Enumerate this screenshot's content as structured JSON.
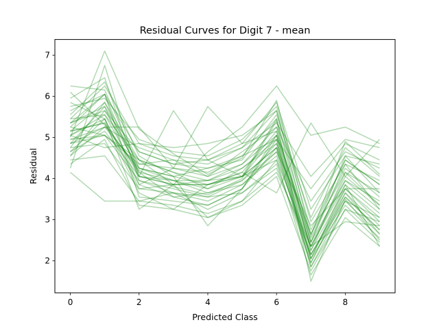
{
  "chart_data": {
    "type": "line",
    "title": "Residual Curves for Digit 7 - mean",
    "xlabel": "Predicted Class",
    "ylabel": "Residual",
    "x": [
      0,
      1,
      2,
      3,
      4,
      5,
      6,
      7,
      8,
      9
    ],
    "xlim": [
      -0.45,
      9.45
    ],
    "ylim": [
      1.22,
      7.38
    ],
    "xticks": [
      0,
      2,
      4,
      6,
      8
    ],
    "yticks": [
      2,
      3,
      4,
      5,
      6,
      7
    ],
    "grid": false,
    "line_color": "#008000",
    "line_alpha": 0.3,
    "series": [
      {
        "values": [
          5.05,
          5.55,
          4.05,
          3.95,
          3.75,
          4.05,
          5.05,
          2.05,
          3.85,
          3.15
        ]
      },
      {
        "values": [
          4.95,
          5.25,
          4.25,
          3.95,
          3.95,
          4.25,
          4.85,
          2.35,
          4.05,
          3.35
        ]
      },
      {
        "values": [
          5.15,
          5.85,
          4.45,
          4.15,
          3.95,
          4.35,
          5.25,
          2.25,
          3.75,
          3.05
        ]
      },
      {
        "values": [
          4.85,
          5.05,
          3.95,
          3.75,
          3.55,
          3.95,
          4.65,
          1.95,
          3.65,
          2.85
        ]
      },
      {
        "values": [
          5.25,
          6.05,
          4.65,
          4.35,
          4.25,
          4.55,
          5.45,
          2.55,
          4.25,
          3.55
        ]
      },
      {
        "values": [
          4.75,
          4.85,
          3.75,
          3.65,
          3.45,
          3.85,
          4.55,
          2.15,
          3.55,
          2.75
        ]
      },
      {
        "values": [
          5.35,
          5.65,
          4.25,
          4.05,
          3.85,
          4.15,
          5.15,
          2.45,
          3.95,
          3.25
        ]
      },
      {
        "values": [
          5.05,
          5.45,
          3.85,
          3.55,
          3.35,
          3.75,
          4.95,
          1.85,
          3.45,
          2.65
        ]
      },
      {
        "values": [
          4.65,
          5.15,
          4.05,
          3.85,
          3.85,
          4.05,
          4.75,
          2.65,
          4.15,
          3.65
        ]
      },
      {
        "values": [
          5.45,
          6.25,
          4.85,
          4.55,
          4.45,
          4.75,
          5.65,
          2.75,
          4.45,
          3.85
        ]
      },
      {
        "values": [
          5.15,
          5.35,
          4.15,
          3.95,
          3.65,
          3.95,
          4.85,
          2.05,
          3.75,
          2.95
        ]
      },
      {
        "values": [
          4.85,
          5.75,
          4.35,
          4.25,
          4.05,
          4.35,
          5.05,
          2.35,
          3.95,
          3.45
        ]
      },
      {
        "values": [
          6.1,
          5.3,
          4.2,
          3.8,
          3.6,
          4.0,
          5.4,
          1.5,
          3.5,
          2.5
        ]
      },
      {
        "values": [
          5.0,
          7.1,
          5.2,
          4.6,
          4.1,
          4.5,
          5.9,
          2.6,
          4.9,
          4.1
        ]
      },
      {
        "values": [
          4.15,
          3.45,
          3.45,
          3.65,
          3.25,
          3.65,
          4.25,
          2.15,
          3.65,
          2.65
        ]
      },
      {
        "values": [
          4.25,
          6.75,
          4.05,
          3.85,
          3.85,
          4.05,
          4.45,
          2.35,
          3.85,
          2.35
        ]
      },
      {
        "values": [
          5.65,
          6.05,
          4.05,
          5.65,
          4.45,
          4.05,
          4.75,
          1.85,
          3.25,
          2.95
        ]
      },
      {
        "values": [
          4.55,
          5.25,
          5.25,
          4.25,
          5.75,
          4.85,
          5.15,
          2.45,
          4.55,
          3.65
        ]
      },
      {
        "values": [
          5.85,
          5.45,
          3.25,
          3.85,
          3.05,
          3.45,
          4.45,
          1.65,
          3.05,
          2.35
        ]
      },
      {
        "values": [
          6.25,
          6.15,
          4.25,
          4.05,
          2.85,
          3.75,
          5.05,
          2.65,
          4.45,
          3.85
        ]
      },
      {
        "values": [
          4.95,
          5.05,
          4.45,
          3.85,
          4.65,
          5.25,
          6.25,
          5.05,
          5.25,
          4.85
        ]
      },
      {
        "values": [
          5.15,
          5.35,
          3.65,
          3.25,
          3.85,
          4.15,
          3.65,
          5.35,
          4.05,
          4.95
        ]
      },
      {
        "values": [
          5.35,
          5.75,
          3.85,
          4.25,
          4.15,
          4.55,
          4.95,
          3.75,
          4.85,
          4.45
        ]
      },
      {
        "values": [
          4.85,
          5.25,
          4.75,
          4.45,
          4.35,
          4.75,
          5.35,
          4.05,
          4.95,
          4.75
        ]
      },
      {
        "values": [
          5.55,
          6.35,
          4.55,
          4.05,
          4.25,
          4.45,
          5.55,
          3.05,
          4.75,
          4.05
        ]
      },
      {
        "values": [
          4.45,
          4.55,
          3.45,
          3.35,
          3.15,
          3.45,
          4.15,
          2.35,
          2.95,
          2.85
        ]
      },
      {
        "values": [
          5.75,
          5.95,
          4.95,
          4.65,
          4.55,
          4.95,
          5.75,
          2.95,
          4.35,
          3.25
        ]
      },
      {
        "values": [
          4.35,
          4.95,
          3.35,
          3.25,
          3.05,
          3.35,
          4.05,
          1.75,
          3.25,
          2.45
        ]
      },
      {
        "values": [
          5.25,
          5.05,
          4.35,
          4.45,
          4.05,
          4.65,
          5.25,
          3.45,
          4.65,
          4.25
        ]
      },
      {
        "values": [
          4.75,
          5.85,
          4.15,
          3.55,
          3.65,
          3.85,
          4.65,
          2.85,
          3.75,
          3.75
        ]
      },
      {
        "values": [
          5.45,
          5.55,
          4.45,
          4.15,
          3.75,
          4.25,
          4.95,
          2.15,
          3.45,
          3.05
        ]
      },
      {
        "values": [
          4.65,
          5.45,
          3.75,
          3.85,
          3.95,
          4.05,
          5.45,
          2.25,
          4.15,
          3.35
        ]
      },
      {
        "values": [
          5.95,
          6.45,
          3.95,
          3.65,
          3.55,
          3.65,
          4.35,
          1.95,
          3.55,
          2.75
        ]
      },
      {
        "values": [
          5.05,
          4.75,
          4.85,
          4.75,
          4.85,
          5.05,
          5.65,
          2.45,
          4.35,
          3.95
        ]
      },
      {
        "values": [
          4.55,
          5.65,
          4.65,
          4.35,
          4.45,
          4.85,
          5.85,
          3.25,
          4.55,
          4.35
        ]
      },
      {
        "values": [
          5.35,
          6.05,
          3.55,
          3.45,
          3.35,
          3.75,
          4.75,
          2.05,
          3.35,
          2.55
        ]
      }
    ]
  }
}
